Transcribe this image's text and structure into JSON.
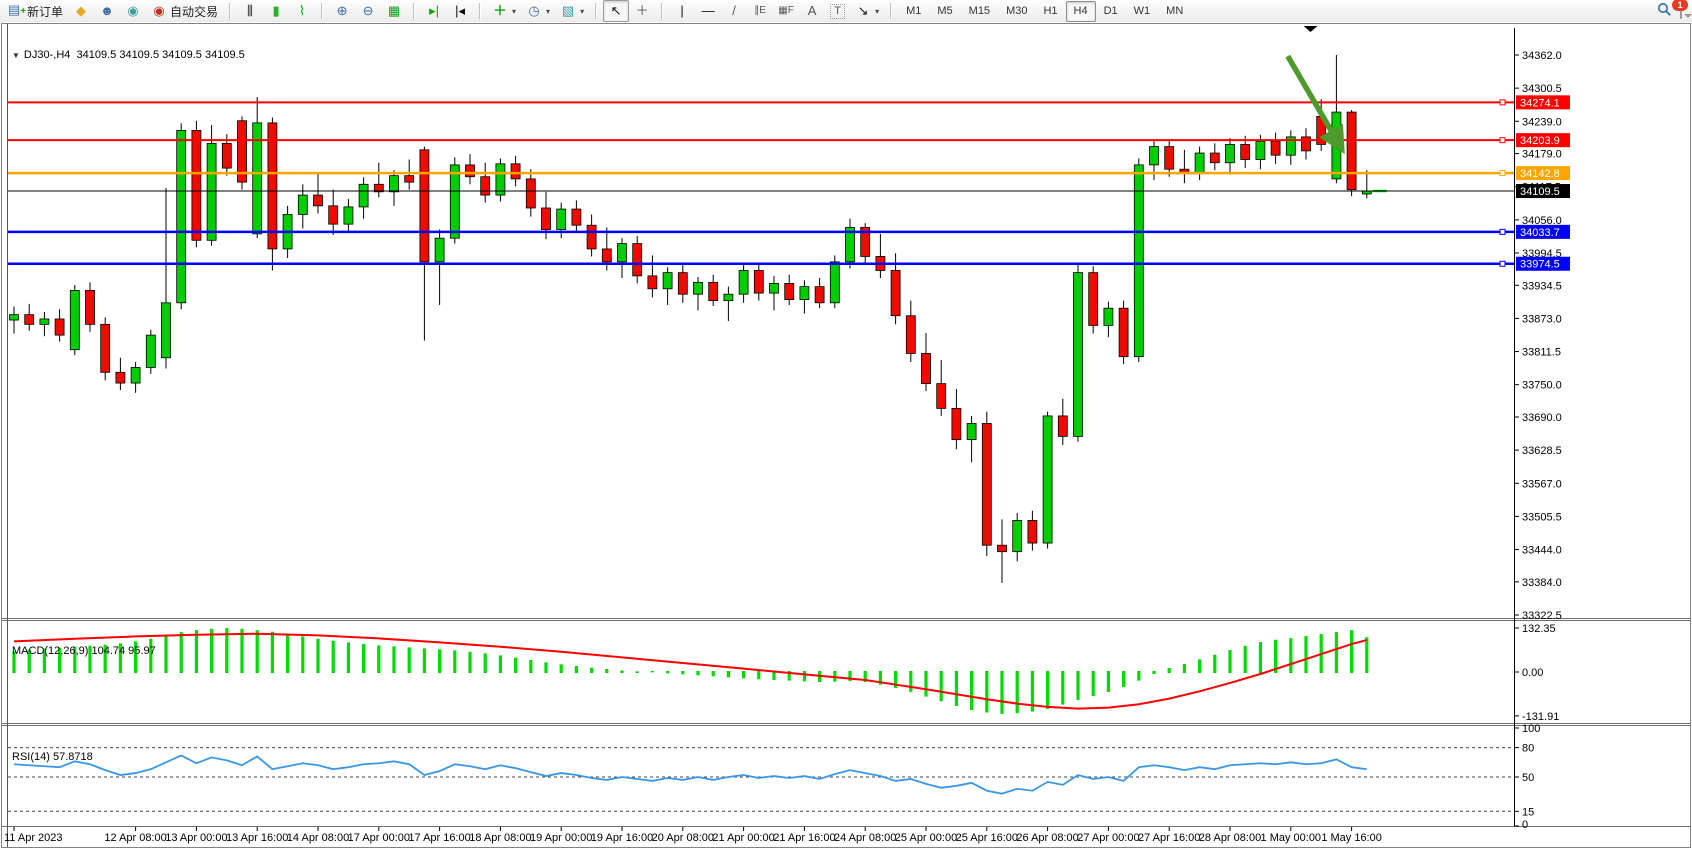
{
  "toolbar": {
    "new_order_label": "新订单",
    "autotrading_label": "自动交易",
    "timeframes": [
      "M1",
      "M5",
      "M15",
      "M30",
      "H1",
      "H4",
      "D1",
      "W1",
      "MN"
    ],
    "active_timeframe": "H4",
    "notification_count": "1",
    "glyphs": {
      "new_order": "▤",
      "new_order_plus": "+",
      "expert_advisors": "◆",
      "community": "☻",
      "signals": "◉",
      "autotrading": "◉",
      "bar_chart": "⫼",
      "candlestick_chart": "▮",
      "line_chart": "⌇",
      "zoom_in": "⊕",
      "zoom_out": "⊖",
      "tile_windows": "▦",
      "auto_scroll": "▸|",
      "chart_shift": "|◂",
      "indicators": "＋",
      "periods": "◷",
      "templates": "▧",
      "caret": "▾",
      "cursor": "↖",
      "crosshair": "＋",
      "vline": "|",
      "hline": "—",
      "trendline": "/",
      "channel": "∥E",
      "fibonacci": "▦F",
      "text": "A",
      "label": "T",
      "arrows": "↘"
    }
  },
  "chart": {
    "collapse_glyph": "▼",
    "symbol_period": "DJ30-,H4",
    "ohlc_line": "34109.5 34109.5 34109.5 34109.5"
  },
  "chart_data": {
    "type": "candlestick",
    "symbol": "DJ30-",
    "period": "H4",
    "style": {
      "up_color": "#00ce00",
      "down_color": "#ee0b00",
      "wick_color": "#000000",
      "macd_hist_color": "#00dc00",
      "macd_signal_color": "#ff0000",
      "rsi_line_color": "#3a96e6",
      "arrow_color": "#4e9a2c",
      "hline_red": "#ff0000",
      "hline_orange": "#ffa500",
      "hline_blue": "#0000ff",
      "current_price_color": "#000000"
    },
    "y_axis_ticks": [
      "34362.0",
      "34300.5",
      "34239.0",
      "34179.0",
      "34117.5",
      "34056.0",
      "33994.5",
      "33934.5",
      "33873.0",
      "33811.5",
      "33750.0",
      "33690.0",
      "33628.5",
      "33567.0",
      "33505.5",
      "33444.0",
      "33384.0",
      "33322.5"
    ],
    "hlines": [
      {
        "price": 34274.1,
        "label": "34274.1",
        "color": "#ff0000",
        "width": 2
      },
      {
        "price": 34203.9,
        "label": "34203.9",
        "color": "#ff0000",
        "width": 2
      },
      {
        "price": 34142.8,
        "label": "34142.8",
        "color": "#ffa500",
        "width": 2.5
      },
      {
        "price": 34033.7,
        "label": "34033.7",
        "color": "#0000ff",
        "width": 2.5
      },
      {
        "price": 33974.5,
        "label": "33974.5",
        "color": "#0000ff",
        "width": 2.5
      }
    ],
    "current_price": {
      "value": 34109.5,
      "label": "34109.5"
    },
    "candles_ohlc": [
      [
        33870,
        33895,
        33845,
        33880
      ],
      [
        33880,
        33900,
        33850,
        33862
      ],
      [
        33862,
        33885,
        33840,
        33872
      ],
      [
        33872,
        33890,
        33830,
        33842
      ],
      [
        33815,
        33935,
        33805,
        33925
      ],
      [
        33925,
        33940,
        33848,
        33862
      ],
      [
        33862,
        33875,
        33758,
        33773
      ],
      [
        33773,
        33800,
        33740,
        33753
      ],
      [
        33753,
        33792,
        33735,
        33782
      ],
      [
        33782,
        33852,
        33770,
        33842
      ],
      [
        33800,
        34115,
        33780,
        33902
      ],
      [
        33902,
        34235,
        33890,
        34222
      ],
      [
        34222,
        34240,
        34005,
        34018
      ],
      [
        34018,
        34232,
        34008,
        34198
      ],
      [
        34198,
        34215,
        34138,
        34152
      ],
      [
        34240,
        34248,
        34112,
        34126
      ],
      [
        34030,
        34284,
        34022,
        34236
      ],
      [
        34236,
        34246,
        33962,
        34002
      ],
      [
        34002,
        34082,
        33985,
        34066
      ],
      [
        34066,
        34122,
        34040,
        34102
      ],
      [
        34102,
        34142,
        34068,
        34082
      ],
      [
        34082,
        34112,
        34028,
        34048
      ],
      [
        34048,
        34095,
        34032,
        34080
      ],
      [
        34080,
        34135,
        34058,
        34122
      ],
      [
        34122,
        34162,
        34098,
        34108
      ],
      [
        34108,
        34148,
        34082,
        34138
      ],
      [
        34138,
        34168,
        34112,
        34126
      ],
      [
        34186,
        34192,
        33832,
        33978
      ],
      [
        33978,
        34038,
        33898,
        34022
      ],
      [
        34022,
        34172,
        34012,
        34158
      ],
      [
        34158,
        34178,
        34122,
        34136
      ],
      [
        34136,
        34162,
        34088,
        34102
      ],
      [
        34102,
        34170,
        34090,
        34160
      ],
      [
        34160,
        34175,
        34118,
        34132
      ],
      [
        34132,
        34150,
        34062,
        34078
      ],
      [
        34078,
        34108,
        34020,
        34038
      ],
      [
        34038,
        34088,
        34022,
        34076
      ],
      [
        34076,
        34092,
        34032,
        34046
      ],
      [
        34046,
        34066,
        33988,
        34002
      ],
      [
        34002,
        34042,
        33962,
        33978
      ],
      [
        33978,
        34022,
        33948,
        34012
      ],
      [
        34012,
        34026,
        33938,
        33952
      ],
      [
        33952,
        33990,
        33912,
        33928
      ],
      [
        33928,
        33968,
        33898,
        33958
      ],
      [
        33958,
        33974,
        33902,
        33918
      ],
      [
        33918,
        33950,
        33888,
        33940
      ],
      [
        33940,
        33954,
        33896,
        33906
      ],
      [
        33906,
        33932,
        33868,
        33918
      ],
      [
        33918,
        33972,
        33902,
        33962
      ],
      [
        33962,
        33976,
        33906,
        33920
      ],
      [
        33920,
        33952,
        33888,
        33938
      ],
      [
        33938,
        33954,
        33898,
        33908
      ],
      [
        33908,
        33944,
        33882,
        33932
      ],
      [
        33932,
        33948,
        33892,
        33902
      ],
      [
        33902,
        33990,
        33892,
        33978
      ],
      [
        33978,
        34058,
        33966,
        34042
      ],
      [
        34042,
        34050,
        33974,
        33988
      ],
      [
        33988,
        34030,
        33948,
        33962
      ],
      [
        33962,
        33994,
        33862,
        33878
      ],
      [
        33878,
        33906,
        33792,
        33808
      ],
      [
        33808,
        33846,
        33738,
        33752
      ],
      [
        33752,
        33796,
        33692,
        33706
      ],
      [
        33706,
        33742,
        33630,
        33648
      ],
      [
        33648,
        33692,
        33606,
        33678
      ],
      [
        33678,
        33700,
        33432,
        33452
      ],
      [
        33452,
        33500,
        33382,
        33440
      ],
      [
        33440,
        33512,
        33422,
        33498
      ],
      [
        33498,
        33516,
        33442,
        33456
      ],
      [
        33456,
        33700,
        33446,
        33692
      ],
      [
        33692,
        33724,
        33638,
        33654
      ],
      [
        33654,
        33974,
        33644,
        33958
      ],
      [
        33958,
        33970,
        33845,
        33860
      ],
      [
        33860,
        33904,
        33838,
        33892
      ],
      [
        33892,
        33906,
        33788,
        33802
      ],
      [
        33802,
        34170,
        33792,
        34158
      ],
      [
        34158,
        34206,
        34130,
        34192
      ],
      [
        34192,
        34204,
        34136,
        34150
      ],
      [
        34150,
        34186,
        34124,
        34142
      ],
      [
        34142,
        34192,
        34130,
        34180
      ],
      [
        34180,
        34198,
        34148,
        34162
      ],
      [
        34162,
        34208,
        34140,
        34196
      ],
      [
        34196,
        34212,
        34152,
        34168
      ],
      [
        34168,
        34214,
        34150,
        34202
      ],
      [
        34202,
        34218,
        34160,
        34176
      ],
      [
        34176,
        34222,
        34158,
        34210
      ],
      [
        34210,
        34226,
        34168,
        34184
      ],
      [
        34248,
        34280,
        34184,
        34196
      ],
      [
        34132,
        34362,
        34124,
        34256
      ],
      [
        34256,
        34260,
        34100,
        34112
      ],
      [
        34104,
        34148,
        34096,
        34109.5
      ]
    ],
    "x_axis_labels": [
      {
        "bar": 0,
        "text": "11 Apr 2023"
      },
      {
        "bar": 8,
        "text": "12 Apr 08:00"
      },
      {
        "bar": 12,
        "text": "13 Apr 00:00"
      },
      {
        "bar": 16,
        "text": "13 Apr 16:00"
      },
      {
        "bar": 20,
        "text": "14 Apr 08:00"
      },
      {
        "bar": 24,
        "text": "17 Apr 00:00"
      },
      {
        "bar": 28,
        "text": "17 Apr 16:00"
      },
      {
        "bar": 32,
        "text": "18 Apr 08:00"
      },
      {
        "bar": 36,
        "text": "19 Apr 00:00"
      },
      {
        "bar": 40,
        "text": "19 Apr 16:00"
      },
      {
        "bar": 44,
        "text": "20 Apr 08:00"
      },
      {
        "bar": 48,
        "text": "21 Apr 00:00"
      },
      {
        "bar": 52,
        "text": "21 Apr 16:00"
      },
      {
        "bar": 56,
        "text": "24 Apr 08:00"
      },
      {
        "bar": 60,
        "text": "25 Apr 00:00"
      },
      {
        "bar": 64,
        "text": "25 Apr 16:00"
      },
      {
        "bar": 68,
        "text": "26 Apr 08:00"
      },
      {
        "bar": 72,
        "text": "27 Apr 00:00"
      },
      {
        "bar": 76,
        "text": "27 Apr 16:00"
      },
      {
        "bar": 80,
        "text": "28 Apr 08:00"
      },
      {
        "bar": 84,
        "text": "1 May 00:00"
      },
      {
        "bar": 88,
        "text": "1 May 16:00"
      }
    ],
    "macd": {
      "label": "MACD(12,26,9) 104.74 95.97",
      "params": "12,26,9",
      "main_value": 104.74,
      "signal_value": 95.97,
      "axis_ticks": [
        "132.35",
        "0.00",
        "-131.91"
      ],
      "axis_values": [
        132.35,
        0.0,
        -131.91
      ],
      "histogram": [
        62,
        66,
        70,
        73,
        76,
        79,
        82,
        86,
        92,
        100,
        110,
        120,
        126,
        130,
        132,
        130,
        126,
        121,
        114,
        107,
        100,
        94,
        89,
        84,
        80,
        77,
        74,
        71,
        68,
        65,
        61,
        56,
        50,
        43,
        36,
        29,
        23,
        18,
        13,
        9,
        5,
        2,
        -1,
        -4,
        -7,
        -10,
        -13,
        -16,
        -19,
        -22,
        -24,
        -26,
        -28,
        -30,
        -29,
        -27,
        -30,
        -38,
        -48,
        -60,
        -74,
        -88,
        -102,
        -114,
        -122,
        -126,
        -124,
        -119,
        -111,
        -98,
        -84,
        -72,
        -60,
        -45,
        -26,
        -6,
        12,
        24,
        38,
        52,
        66,
        79,
        90,
        97,
        102,
        108,
        114,
        120,
        126,
        104.74
      ],
      "signal": [
        [
          0,
          92
        ],
        [
          4,
          100
        ],
        [
          8,
          107
        ],
        [
          12,
          112
        ],
        [
          16,
          115
        ],
        [
          20,
          110
        ],
        [
          24,
          101
        ],
        [
          28,
          89
        ],
        [
          32,
          76
        ],
        [
          36,
          61
        ],
        [
          40,
          44
        ],
        [
          44,
          27
        ],
        [
          48,
          10
        ],
        [
          52,
          -7
        ],
        [
          56,
          -24
        ],
        [
          60,
          -52
        ],
        [
          64,
          -82
        ],
        [
          66,
          -95
        ],
        [
          68,
          -105
        ],
        [
          70,
          -110
        ],
        [
          72,
          -107
        ],
        [
          74,
          -97
        ],
        [
          76,
          -80
        ],
        [
          78,
          -58
        ],
        [
          80,
          -33
        ],
        [
          82,
          -6
        ],
        [
          84,
          24
        ],
        [
          86,
          54
        ],
        [
          88,
          84
        ],
        [
          89,
          95.97
        ]
      ]
    },
    "rsi": {
      "label": "RSI(14) 57.8718",
      "period": 14,
      "value": 57.8718,
      "levels": [
        80,
        50,
        15
      ],
      "axis_ticks": [
        "100",
        "80",
        "50",
        "15",
        "0"
      ],
      "axis_values": [
        100,
        80,
        50,
        15,
        0
      ],
      "values": [
        63,
        62,
        61,
        60,
        66,
        63,
        57,
        52,
        54,
        58,
        65,
        72,
        64,
        70,
        67,
        62,
        71,
        58,
        61,
        64,
        62,
        58,
        60,
        63,
        64,
        66,
        63,
        52,
        56,
        63,
        61,
        58,
        62,
        59,
        55,
        51,
        54,
        52,
        49,
        47,
        50,
        48,
        46,
        49,
        47,
        50,
        47,
        50,
        52,
        49,
        51,
        49,
        51,
        48,
        53,
        57,
        54,
        51,
        46,
        48,
        43,
        39,
        41,
        44,
        36,
        33,
        38,
        36,
        45,
        42,
        52,
        48,
        50,
        46,
        60,
        62,
        60,
        57,
        60,
        58,
        62,
        63,
        64,
        63,
        65,
        63,
        64,
        68,
        60,
        57.87
      ]
    },
    "annotations": {
      "arrow": {
        "from_bar": 83.8,
        "from_price": 34360,
        "to_bar": 87.1,
        "to_price": 34200,
        "color": "#4e9a2c"
      },
      "shift_marker_bar": 85.3
    }
  }
}
